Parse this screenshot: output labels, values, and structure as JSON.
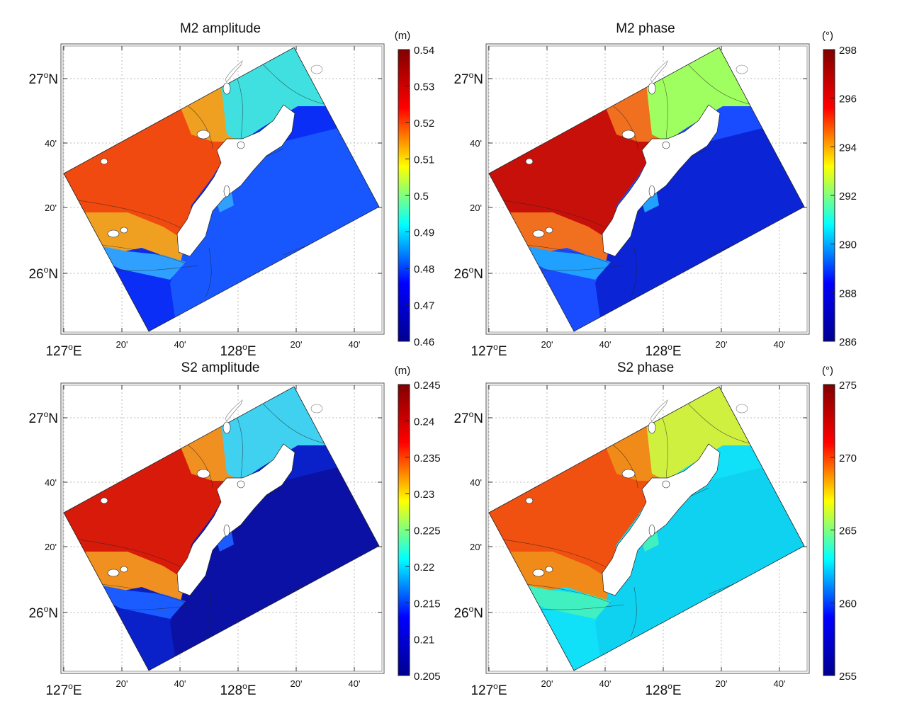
{
  "panels": [
    {
      "title": "M2 amplitude",
      "unit": "(m)",
      "cbar_ticks": [
        "0.54",
        "0.53",
        "0.52",
        "0.51",
        "0.5",
        "0.49",
        "0.48",
        "0.47",
        "0.46"
      ],
      "range": [
        0.46,
        0.54
      ],
      "colors": {
        "base": "#0a2ef5",
        "west": "#f04a10",
        "north": "#f0a020",
        "ne": "#40e0e0",
        "sw": "#30a0ff",
        "east": "#1a5cff"
      }
    },
    {
      "title": "M2 phase",
      "unit": "(°)",
      "cbar_ticks": [
        "298",
        "296",
        "294",
        "292",
        "290",
        "288",
        "286"
      ],
      "range": [
        286,
        298
      ],
      "colors": {
        "base": "#1a4cff",
        "west": "#c8100a",
        "north": "#f07020",
        "ne": "#a0ff60",
        "sw": "#20a0ff",
        "east": "#0a20d0"
      }
    },
    {
      "title": "S2 amplitude",
      "unit": "(m)",
      "cbar_ticks": [
        "0.245",
        "0.24",
        "0.235",
        "0.23",
        "0.225",
        "0.22",
        "0.215",
        "0.21",
        "0.205"
      ],
      "range": [
        0.205,
        0.245
      ],
      "colors": {
        "base": "#0a20c8",
        "west": "#d81a0a",
        "north": "#f09020",
        "ne": "#40d0f0",
        "sw": "#1a5cff",
        "east": "#0a10a0"
      }
    },
    {
      "title": "S2 phase",
      "unit": "(°)",
      "cbar_ticks": [
        "275",
        "270",
        "265",
        "260",
        "255"
      ],
      "range": [
        255,
        275
      ],
      "colors": {
        "base": "#10e0f8",
        "west": "#f05010",
        "north": "#f08a18",
        "ne": "#d0f040",
        "sw": "#40f0c0",
        "east": "#10d0f0"
      }
    }
  ],
  "axes": {
    "x_labels": [
      {
        "deg": "127",
        "sup": "o",
        "suffix": "E",
        "major": true
      },
      {
        "deg": "20'",
        "major": false
      },
      {
        "deg": "40'",
        "major": false
      },
      {
        "deg": "128",
        "sup": "o",
        "suffix": "E",
        "major": true
      },
      {
        "deg": "20'",
        "major": false
      },
      {
        "deg": "40'",
        "major": false
      }
    ],
    "y_labels": [
      {
        "deg": "27",
        "sup": "o",
        "suffix": "N",
        "major": true
      },
      {
        "deg": "40'",
        "major": false
      },
      {
        "deg": "20'",
        "major": false
      },
      {
        "deg": "26",
        "sup": "o",
        "suffix": "N",
        "major": true
      }
    ]
  },
  "colormap": [
    "#00008f",
    "#0000ff",
    "#00ffff",
    "#ffff00",
    "#ff0000",
    "#800000"
  ]
}
